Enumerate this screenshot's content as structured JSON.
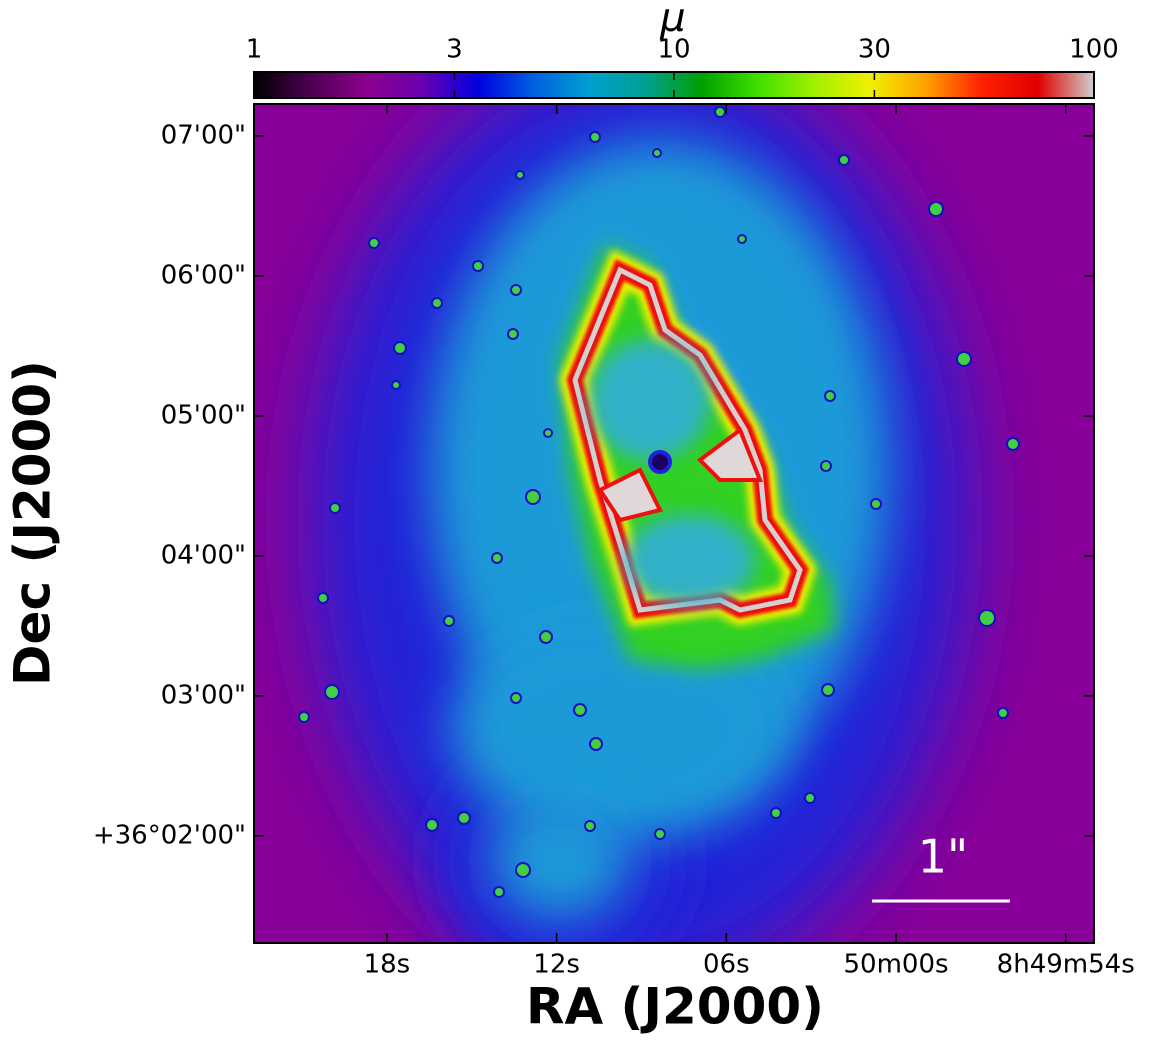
{
  "chart_data": {
    "type": "heatmap",
    "xlabel": "RA (J2000)",
    "ylabel": "Dec (J2000)",
    "xlim": [
      31822.7,
      31793.0
    ],
    "xticks": [
      {
        "value": 31818,
        "label": "18s"
      },
      {
        "value": 31812,
        "label": "12s"
      },
      {
        "value": 31806,
        "label": "06s"
      },
      {
        "value": 31800,
        "label": "50m00s"
      },
      {
        "value": 31794,
        "label": "8h49m54s"
      }
    ],
    "ylim": [
      74.1,
      433.7
    ],
    "yticks": [
      {
        "value": 120,
        "label": "+36°02'00\""
      },
      {
        "value": 180,
        "label": "03'00\""
      },
      {
        "value": 240,
        "label": "04'00\""
      },
      {
        "value": 300,
        "label": "05'00\""
      },
      {
        "value": 360,
        "label": "06'00\""
      },
      {
        "value": 420,
        "label": "07'00\""
      }
    ],
    "colorbar": {
      "label": "μ",
      "lim": [
        1,
        100
      ],
      "ticks": [
        1,
        3,
        10,
        30,
        100
      ],
      "log": true,
      "colormap": [
        "#000000",
        "#4b0050",
        "#8c008c",
        "#6a00b0",
        "#0000e0",
        "#0060e0",
        "#00a0d0",
        "#00a090",
        "#00a000",
        "#40e000",
        "#a0f000",
        "#f0f000",
        "#ffa000",
        "#ff2000",
        "#e00000",
        "#d0d0d0"
      ]
    },
    "scale_bar_label": "1\""
  }
}
